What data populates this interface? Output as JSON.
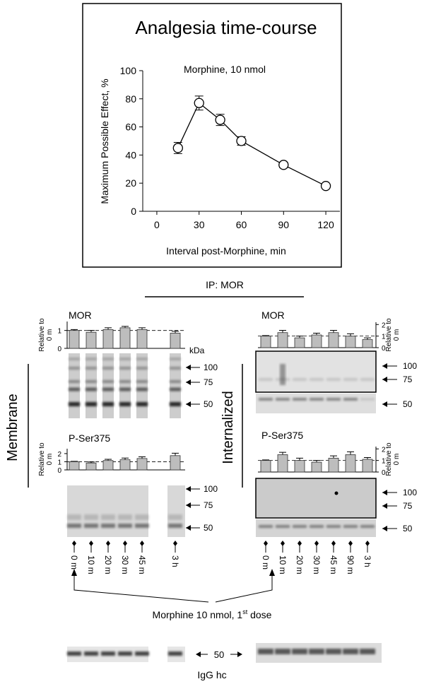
{
  "chart_data": [
    {
      "type": "line",
      "title": "Analgesia time-course",
      "subtitle": "Morphine, 10 nmol",
      "x_label": "Interval post-Morphine, min",
      "y_label": "Maximum Possible Effect, %",
      "x": [
        15,
        30,
        45,
        60,
        90,
        120
      ],
      "values": [
        45,
        77,
        65,
        50,
        33,
        18
      ],
      "errors": [
        4,
        5,
        4,
        3,
        2,
        1
      ],
      "xlim": [
        -10,
        130
      ],
      "xticks": [
        0,
        30,
        60,
        90,
        120
      ],
      "ylim": [
        0,
        100
      ],
      "yticks": [
        0,
        20,
        40,
        60,
        80,
        100
      ],
      "color": "#000000"
    },
    {
      "type": "bar",
      "title": "MOR",
      "y_label": "Relative to 0 m",
      "values": [
        1,
        0.9,
        1.05,
        1.15,
        1.05,
        0.85
      ],
      "errors": [
        0.05,
        0.1,
        0.1,
        0.08,
        0.1,
        0.1
      ],
      "ylim": [
        0,
        1.5
      ],
      "yticks": [
        0,
        1
      ],
      "reference_line": 1,
      "color": "#bdbdbd"
    },
    {
      "type": "bar",
      "title": "P-Ser375",
      "y_label": "Relative to 0 m",
      "values": [
        1,
        0.85,
        1.15,
        1.25,
        1.4,
        1.75
      ],
      "errors": [
        0.05,
        0.12,
        0.15,
        0.2,
        0.2,
        0.3
      ],
      "ylim": [
        0,
        2.6
      ],
      "yticks": [
        0,
        1,
        2
      ],
      "reference_line": 1,
      "color": "#bdbdbd"
    },
    {
      "type": "bar",
      "title": "MOR",
      "y_label": "Relative to 0 m",
      "values": [
        1,
        1.3,
        0.85,
        1.1,
        1.3,
        1.0,
        0.7
      ],
      "errors": [
        0.05,
        0.2,
        0.15,
        0.15,
        0.2,
        0.2,
        0.15
      ],
      "ylim": [
        0,
        2.2
      ],
      "yticks": [
        0,
        1,
        2
      ],
      "reference_line": 1,
      "color": "#bdbdbd"
    },
    {
      "type": "bar",
      "title": "P-Ser375",
      "y_label": "Relative to 0 m",
      "values": [
        1,
        1.5,
        1.0,
        0.85,
        1.2,
        1.5,
        1.1
      ],
      "errors": [
        0.05,
        0.2,
        0.2,
        0.15,
        0.2,
        0.25,
        0.15
      ],
      "ylim": [
        0,
        2.2
      ],
      "yticks": [
        0,
        1,
        2
      ],
      "reference_line": 1,
      "color": "#bdbdbd"
    }
  ],
  "ip_label": "IP: MOR",
  "sections": [
    "Membrane",
    "Internalized"
  ],
  "kda_label": "kDa",
  "markers": [
    "100",
    "75",
    "50"
  ],
  "membrane_lanes": [
    "0 m",
    "10 m",
    "20 m",
    "30 m",
    "45 m",
    "3 h"
  ],
  "internalized_lanes": [
    "0 m",
    "10 m",
    "20 m",
    "30 m",
    "45 m",
    "90 m",
    "3 h"
  ],
  "dose_label": {
    "text": "Morphine 10 nmol, 1",
    "sup": "st",
    "rest": " dose"
  },
  "igg_marker": "50",
  "igg_label": "IgG hc"
}
